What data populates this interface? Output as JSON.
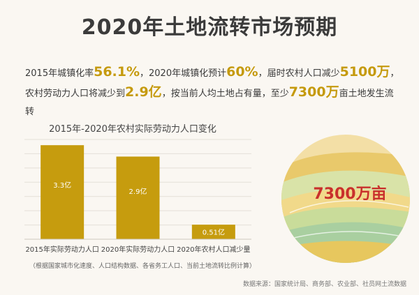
{
  "title": "2020年土地流转市场预期",
  "summary": {
    "t1": "2015年城镇化率",
    "n1": "56.1%",
    "t2": "，2020年城镇化预计",
    "n2": "60%",
    "t3": "，届时农村人口减少",
    "n3": "5100万",
    "t4": "，农村劳动力人口将减少到",
    "n4": "2.9亿",
    "t5": "，按当前人均土地占有量，至少",
    "n5": "7300万",
    "t6": "亩土地发生流转"
  },
  "illustration": {
    "label": "7300万亩"
  },
  "note": "（根据国家城市化速度、人口结构数据、各省务工人口、当前土地流转比例计算）",
  "source": "数据来源：国家统计局、商务部、农业部、社员网土流数据",
  "colors": {
    "bar": "#c69c0e",
    "accent": "#c59a0d",
    "label_text": "#c9302c"
  },
  "chart_data": {
    "type": "bar",
    "title": "2015年-2020年农村实际劳动力人口变化",
    "categories": [
      "2015年实际劳动力人口",
      "2020年实际劳动力人口",
      "2020年农村人口减少量"
    ],
    "values": [
      3.3,
      2.9,
      0.51
    ],
    "value_labels": [
      "3.3亿",
      "2.9亿",
      "0.51亿"
    ],
    "unit": "亿",
    "ylim": [
      0,
      3.5
    ],
    "grid": true
  }
}
